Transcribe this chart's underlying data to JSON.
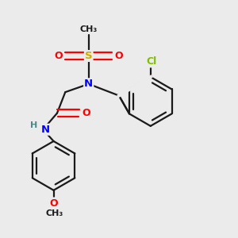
{
  "background_color": "#ebebeb",
  "bond_color": "#1a1a1a",
  "atom_colors": {
    "N": "#0000ff",
    "O": "#ff0000",
    "S": "#ccaa00",
    "Cl": "#7fbf00",
    "C": "#1a1a1a",
    "H": "#4a8a8a"
  },
  "figsize": [
    3.0,
    3.0
  ],
  "dpi": 100
}
